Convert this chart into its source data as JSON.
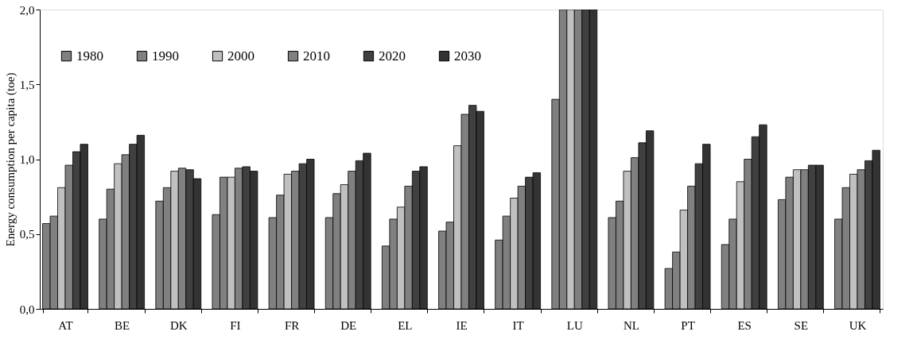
{
  "chart_data": {
    "type": "bar",
    "ylabel": "Energy consumption per capita (toe)",
    "categories": [
      "AT",
      "BE",
      "DK",
      "FI",
      "FR",
      "DE",
      "EL",
      "IE",
      "IT",
      "LU",
      "NL",
      "PT",
      "ES",
      "SE",
      "UK"
    ],
    "series": [
      {
        "name": "1980",
        "color": "#808080",
        "values": [
          0.57,
          0.6,
          0.72,
          0.63,
          0.61,
          0.61,
          0.42,
          0.52,
          0.46,
          1.4,
          0.61,
          0.27,
          0.43,
          0.73,
          0.6
        ]
      },
      {
        "name": "1990",
        "color": "#808080",
        "values": [
          0.62,
          0.8,
          0.81,
          0.88,
          0.76,
          0.77,
          0.6,
          0.58,
          0.62,
          2.0,
          0.72,
          0.38,
          0.6,
          0.88,
          0.81
        ]
      },
      {
        "name": "2000",
        "color": "#c0c0c0",
        "values": [
          0.81,
          0.97,
          0.92,
          0.88,
          0.9,
          0.83,
          0.68,
          1.09,
          0.74,
          2.0,
          0.92,
          0.66,
          0.85,
          0.93,
          0.9
        ]
      },
      {
        "name": "2010",
        "color": "#808080",
        "values": [
          0.96,
          1.03,
          0.94,
          0.94,
          0.92,
          0.92,
          0.82,
          1.3,
          0.82,
          2.0,
          1.01,
          0.82,
          1.0,
          0.93,
          0.93
        ]
      },
      {
        "name": "2020",
        "color": "#404040",
        "values": [
          1.05,
          1.1,
          0.93,
          0.95,
          0.97,
          0.99,
          0.92,
          1.36,
          0.88,
          2.0,
          1.11,
          0.97,
          1.15,
          0.96,
          0.99
        ]
      },
      {
        "name": "2030",
        "color": "#333333",
        "values": [
          1.1,
          1.16,
          0.87,
          0.92,
          1.0,
          1.04,
          0.95,
          1.32,
          0.91,
          2.0,
          1.19,
          1.1,
          1.23,
          0.96,
          1.06
        ]
      }
    ],
    "ylim": [
      0,
      2.0
    ],
    "yticks": [
      {
        "value": 0,
        "label": "0,0"
      },
      {
        "value": 0.5,
        "label": "0,5"
      },
      {
        "value": 1.0,
        "label": "1,0"
      },
      {
        "value": 1.5,
        "label": "1,5"
      },
      {
        "value": 2.0,
        "label": "2,0"
      }
    ],
    "grid": false,
    "legend": "top left"
  }
}
